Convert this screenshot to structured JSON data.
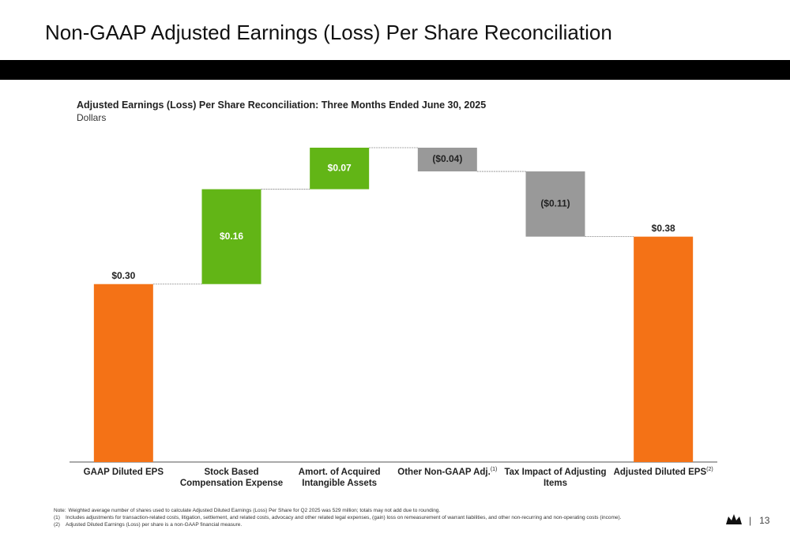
{
  "slide_title": "Non-GAAP Adjusted Earnings (Loss) Per Share Reconciliation",
  "page_number": "13",
  "chart_data": {
    "type": "waterfall",
    "title": "Adjusted Earnings (Loss) Per Share Reconciliation: Three Months Ended June 30, 2025",
    "subtitle": "Dollars",
    "categories": [
      "GAAP Diluted EPS",
      "Stock Based Compensation Expense",
      "Amort. of Acquired Intangible Assets",
      "Other Non-GAAP Adj.",
      "Tax Impact of Adjusting Items",
      "Adjusted Diluted EPS"
    ],
    "category_notes": [
      null,
      null,
      null,
      "(1)",
      null,
      "(2)"
    ],
    "kinds": [
      "total",
      "delta",
      "delta",
      "delta",
      "delta",
      "total"
    ],
    "values": [
      0.3,
      0.16,
      0.07,
      -0.04,
      -0.11,
      0.38
    ],
    "value_labels": [
      "$0.30",
      "$0.16",
      "$0.07",
      "($0.04)",
      "($0.11)",
      "$0.38"
    ],
    "colors": {
      "total": "#f47216",
      "increase": "#62b516",
      "decrease": "#999999"
    }
  },
  "footnotes": [
    {
      "key": "Note:",
      "text": "Weighted average number of shares used to calculate Adjusted Diluted Earnings (Loss) Per Share for Q2 2025 was 529 million; totals may not add due to rounding."
    },
    {
      "key": "(1)",
      "text": "Includes adjustments for transaction-related costs, litigation, settlement, and related costs, advocacy and other related legal expenses, (gain) loss on remeasurement of warrant liabilities, and other non-recurring and non-operating costs (income)."
    },
    {
      "key": "(2)",
      "text": "Adjusted Diluted Earnings (Loss) per share is a non-GAAP financial measure."
    }
  ]
}
